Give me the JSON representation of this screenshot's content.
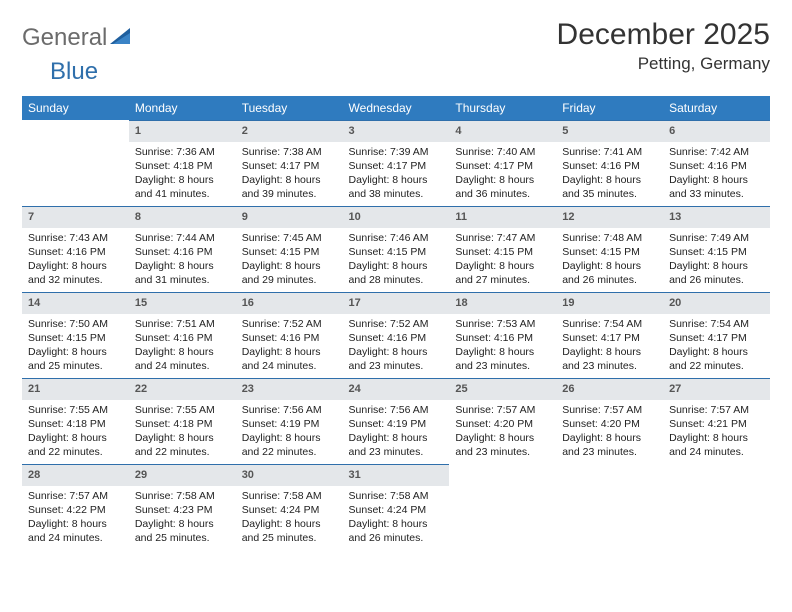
{
  "brand": {
    "general": "General",
    "blue": "Blue"
  },
  "title": {
    "month": "December 2025",
    "location": "Petting, Germany"
  },
  "colors": {
    "header_bg": "#2f7bbf",
    "header_text": "#ffffff",
    "daynum_bg": "#e4e7ea",
    "daynum_border": "#2f6fab",
    "text": "#222222",
    "logo_gray": "#6b6b6b",
    "logo_blue": "#2f6fab"
  },
  "weekdays": [
    "Sunday",
    "Monday",
    "Tuesday",
    "Wednesday",
    "Thursday",
    "Friday",
    "Saturday"
  ],
  "weeks": [
    [
      null,
      {
        "day": "1",
        "sunrise": "Sunrise: 7:36 AM",
        "sunset": "Sunset: 4:18 PM",
        "daylight": "Daylight: 8 hours and 41 minutes."
      },
      {
        "day": "2",
        "sunrise": "Sunrise: 7:38 AM",
        "sunset": "Sunset: 4:17 PM",
        "daylight": "Daylight: 8 hours and 39 minutes."
      },
      {
        "day": "3",
        "sunrise": "Sunrise: 7:39 AM",
        "sunset": "Sunset: 4:17 PM",
        "daylight": "Daylight: 8 hours and 38 minutes."
      },
      {
        "day": "4",
        "sunrise": "Sunrise: 7:40 AM",
        "sunset": "Sunset: 4:17 PM",
        "daylight": "Daylight: 8 hours and 36 minutes."
      },
      {
        "day": "5",
        "sunrise": "Sunrise: 7:41 AM",
        "sunset": "Sunset: 4:16 PM",
        "daylight": "Daylight: 8 hours and 35 minutes."
      },
      {
        "day": "6",
        "sunrise": "Sunrise: 7:42 AM",
        "sunset": "Sunset: 4:16 PM",
        "daylight": "Daylight: 8 hours and 33 minutes."
      }
    ],
    [
      {
        "day": "7",
        "sunrise": "Sunrise: 7:43 AM",
        "sunset": "Sunset: 4:16 PM",
        "daylight": "Daylight: 8 hours and 32 minutes."
      },
      {
        "day": "8",
        "sunrise": "Sunrise: 7:44 AM",
        "sunset": "Sunset: 4:16 PM",
        "daylight": "Daylight: 8 hours and 31 minutes."
      },
      {
        "day": "9",
        "sunrise": "Sunrise: 7:45 AM",
        "sunset": "Sunset: 4:15 PM",
        "daylight": "Daylight: 8 hours and 29 minutes."
      },
      {
        "day": "10",
        "sunrise": "Sunrise: 7:46 AM",
        "sunset": "Sunset: 4:15 PM",
        "daylight": "Daylight: 8 hours and 28 minutes."
      },
      {
        "day": "11",
        "sunrise": "Sunrise: 7:47 AM",
        "sunset": "Sunset: 4:15 PM",
        "daylight": "Daylight: 8 hours and 27 minutes."
      },
      {
        "day": "12",
        "sunrise": "Sunrise: 7:48 AM",
        "sunset": "Sunset: 4:15 PM",
        "daylight": "Daylight: 8 hours and 26 minutes."
      },
      {
        "day": "13",
        "sunrise": "Sunrise: 7:49 AM",
        "sunset": "Sunset: 4:15 PM",
        "daylight": "Daylight: 8 hours and 26 minutes."
      }
    ],
    [
      {
        "day": "14",
        "sunrise": "Sunrise: 7:50 AM",
        "sunset": "Sunset: 4:15 PM",
        "daylight": "Daylight: 8 hours and 25 minutes."
      },
      {
        "day": "15",
        "sunrise": "Sunrise: 7:51 AM",
        "sunset": "Sunset: 4:16 PM",
        "daylight": "Daylight: 8 hours and 24 minutes."
      },
      {
        "day": "16",
        "sunrise": "Sunrise: 7:52 AM",
        "sunset": "Sunset: 4:16 PM",
        "daylight": "Daylight: 8 hours and 24 minutes."
      },
      {
        "day": "17",
        "sunrise": "Sunrise: 7:52 AM",
        "sunset": "Sunset: 4:16 PM",
        "daylight": "Daylight: 8 hours and 23 minutes."
      },
      {
        "day": "18",
        "sunrise": "Sunrise: 7:53 AM",
        "sunset": "Sunset: 4:16 PM",
        "daylight": "Daylight: 8 hours and 23 minutes."
      },
      {
        "day": "19",
        "sunrise": "Sunrise: 7:54 AM",
        "sunset": "Sunset: 4:17 PM",
        "daylight": "Daylight: 8 hours and 23 minutes."
      },
      {
        "day": "20",
        "sunrise": "Sunrise: 7:54 AM",
        "sunset": "Sunset: 4:17 PM",
        "daylight": "Daylight: 8 hours and 22 minutes."
      }
    ],
    [
      {
        "day": "21",
        "sunrise": "Sunrise: 7:55 AM",
        "sunset": "Sunset: 4:18 PM",
        "daylight": "Daylight: 8 hours and 22 minutes."
      },
      {
        "day": "22",
        "sunrise": "Sunrise: 7:55 AM",
        "sunset": "Sunset: 4:18 PM",
        "daylight": "Daylight: 8 hours and 22 minutes."
      },
      {
        "day": "23",
        "sunrise": "Sunrise: 7:56 AM",
        "sunset": "Sunset: 4:19 PM",
        "daylight": "Daylight: 8 hours and 22 minutes."
      },
      {
        "day": "24",
        "sunrise": "Sunrise: 7:56 AM",
        "sunset": "Sunset: 4:19 PM",
        "daylight": "Daylight: 8 hours and 23 minutes."
      },
      {
        "day": "25",
        "sunrise": "Sunrise: 7:57 AM",
        "sunset": "Sunset: 4:20 PM",
        "daylight": "Daylight: 8 hours and 23 minutes."
      },
      {
        "day": "26",
        "sunrise": "Sunrise: 7:57 AM",
        "sunset": "Sunset: 4:20 PM",
        "daylight": "Daylight: 8 hours and 23 minutes."
      },
      {
        "day": "27",
        "sunrise": "Sunrise: 7:57 AM",
        "sunset": "Sunset: 4:21 PM",
        "daylight": "Daylight: 8 hours and 24 minutes."
      }
    ],
    [
      {
        "day": "28",
        "sunrise": "Sunrise: 7:57 AM",
        "sunset": "Sunset: 4:22 PM",
        "daylight": "Daylight: 8 hours and 24 minutes."
      },
      {
        "day": "29",
        "sunrise": "Sunrise: 7:58 AM",
        "sunset": "Sunset: 4:23 PM",
        "daylight": "Daylight: 8 hours and 25 minutes."
      },
      {
        "day": "30",
        "sunrise": "Sunrise: 7:58 AM",
        "sunset": "Sunset: 4:24 PM",
        "daylight": "Daylight: 8 hours and 25 minutes."
      },
      {
        "day": "31",
        "sunrise": "Sunrise: 7:58 AM",
        "sunset": "Sunset: 4:24 PM",
        "daylight": "Daylight: 8 hours and 26 minutes."
      },
      null,
      null,
      null
    ]
  ]
}
